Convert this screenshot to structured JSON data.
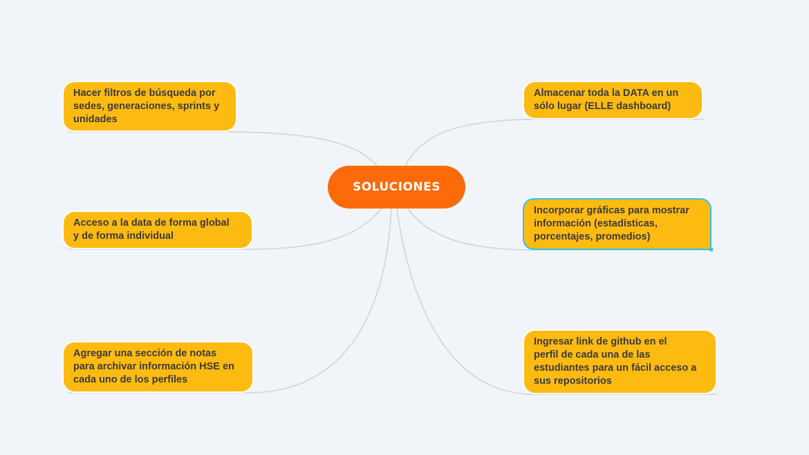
{
  "central_topic": "SOLUCIONES",
  "topics": [
    {
      "id": "filtros",
      "text": "Hacer filtros de búsqueda por\nsedes, generaciones, sprints y\nunidades"
    },
    {
      "id": "acceso",
      "text": "Acceso a la data de forma global\ny de forma individual"
    },
    {
      "id": "notas",
      "text": "Agregar una sección de notas\npara archivar información HSE en\ncada uno de los perfiles"
    },
    {
      "id": "almacenar",
      "text": "Almacenar toda la DATA en un\nsólo lugar (ELLE dashboard)"
    },
    {
      "id": "graficas",
      "text": "Incorporar gráficas para mostrar\ninformación (estadísticas,\nporcentajes, promedios)",
      "selected": true
    },
    {
      "id": "github",
      "text": "Ingresar link de github en el\nperfil de cada una de las\nestudiantes para un fácil acceso a\nsus repositorios"
    }
  ],
  "colors": {
    "background": "#f1f5f9",
    "central_fill": "#fd6a0a",
    "topic_fill": "#fdbb12",
    "connector": "#d0d4d9",
    "selection": "#2ec7e0"
  }
}
